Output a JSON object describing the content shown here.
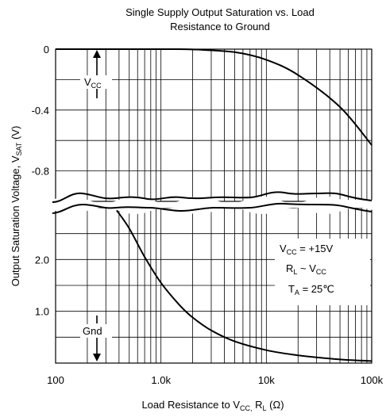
{
  "chart_data": {
    "type": "line",
    "title_line1": "Single Supply Output Saturation vs. Load",
    "title_line2": "Resistance to Ground",
    "xlabel": "Load Resistance to V",
    "xlabel_sub": "CC,",
    "xlabel_mid": " R",
    "xlabel_sub2": "L",
    "xlabel_unit": " (Ω)",
    "ylabel": "Output Saturation Voltage, V",
    "ylabel_sub": "SAT",
    "ylabel_unit": " (V)",
    "x_scale": "log",
    "xlim": [
      100,
      100000
    ],
    "x_ticks": [
      {
        "value": 100,
        "label": "100"
      },
      {
        "value": 1000,
        "label": "1.0k"
      },
      {
        "value": 10000,
        "label": "10k"
      },
      {
        "value": 100000,
        "label": "100k"
      }
    ],
    "upper_panel": {
      "ylim": [
        0,
        -1.0
      ],
      "y_ticks": [
        {
          "value": 0,
          "label": "0"
        },
        {
          "value": -0.4,
          "label": "-0.4"
        },
        {
          "value": -0.8,
          "label": "-0.8"
        }
      ],
      "series": {
        "name": "VCC",
        "points": [
          [
            100,
            0
          ],
          [
            1000,
            0
          ],
          [
            2000,
            -0.002
          ],
          [
            5000,
            -0.02
          ],
          [
            10000,
            -0.07
          ],
          [
            20000,
            -0.17
          ],
          [
            50000,
            -0.38
          ],
          [
            100000,
            -0.63
          ]
        ]
      }
    },
    "lower_panel": {
      "ylim": [
        3.0,
        0
      ],
      "y_ticks": [
        {
          "value": 2.0,
          "label": "2.0"
        },
        {
          "value": 1.0,
          "label": "1.0"
        }
      ],
      "series": {
        "name": "Gnd",
        "points": [
          [
            380,
            2.95
          ],
          [
            500,
            2.6
          ],
          [
            700,
            2.05
          ],
          [
            1000,
            1.55
          ],
          [
            1500,
            1.12
          ],
          [
            2000,
            0.88
          ],
          [
            3000,
            0.63
          ],
          [
            5000,
            0.42
          ],
          [
            10000,
            0.25
          ],
          [
            20000,
            0.15
          ],
          [
            50000,
            0.07
          ],
          [
            100000,
            0.04
          ]
        ]
      }
    },
    "vcc_label": "V",
    "vcc_label_sub": "CC",
    "gnd_label": "Gnd",
    "conditions": [
      {
        "main": "V",
        "sub": "CC",
        "rest": " = +15V"
      },
      {
        "main": "R",
        "sub": "L",
        "rest": " ~ V",
        "sub2": "CC"
      },
      {
        "main": "T",
        "sub": "A",
        "rest": " = 25℃"
      }
    ],
    "grid": true
  }
}
